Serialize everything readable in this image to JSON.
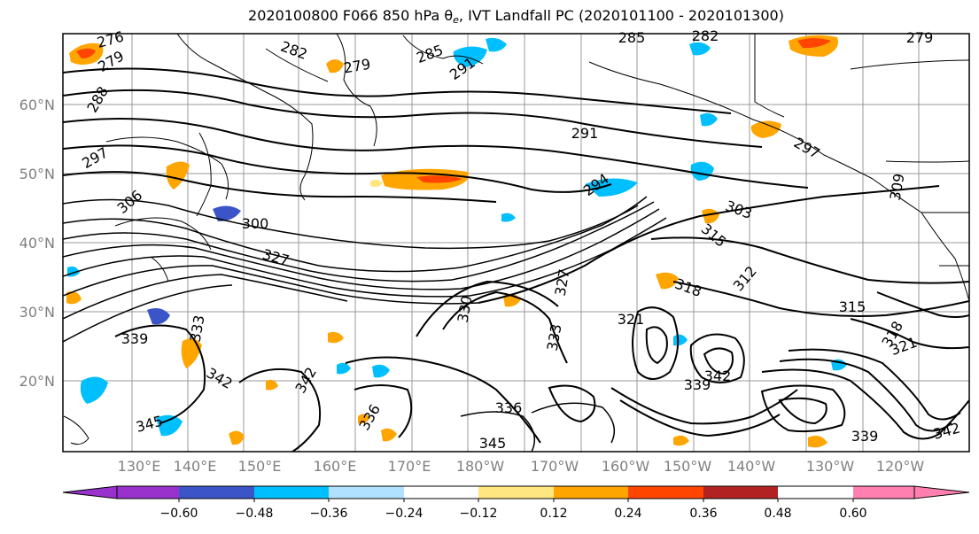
{
  "title": {
    "prefix": "2020100800 F066 850 hPa ",
    "theta": "θ",
    "theta_sub": "e",
    "suffix": ", IVT Landfall PC (2020101100 - 2020101300)"
  },
  "axes": {
    "lat_labels": [
      "60°N",
      "50°N",
      "40°N",
      "30°N",
      "20°N"
    ],
    "lon_labels": [
      "130°E",
      "140°E",
      "150°E",
      "160°E",
      "170°E",
      "180°W",
      "170°W",
      "160°W",
      "150°W",
      "140°W",
      "130°W",
      "120°W"
    ]
  },
  "colorbar": {
    "colors": [
      "#9932cc",
      "#00008b",
      "#3b55c8",
      "#00bfff",
      "#b0e2ff",
      "#ffffff",
      "#ffe680",
      "#ffa500",
      "#ff4500",
      "#b22222",
      "#ff80b0"
    ],
    "tick_labels": [
      "−0.60",
      "−0.48",
      "−0.36",
      "−0.24",
      "−0.12",
      "0.12",
      "0.24",
      "0.36",
      "0.48",
      "0.60"
    ]
  },
  "contour_labels": [
    "276",
    "279",
    "282",
    "279",
    "285",
    "291",
    "285",
    "282",
    "279",
    "288",
    "297",
    "291",
    "294",
    "297",
    "306",
    "300",
    "303",
    "309",
    "315",
    "312",
    "327",
    "318",
    "315",
    "327",
    "330",
    "333",
    "321",
    "318",
    "321",
    "336",
    "339",
    "342",
    "342",
    "345",
    "336",
    "345",
    "339",
    "342",
    "339",
    "342",
    "333"
  ]
}
